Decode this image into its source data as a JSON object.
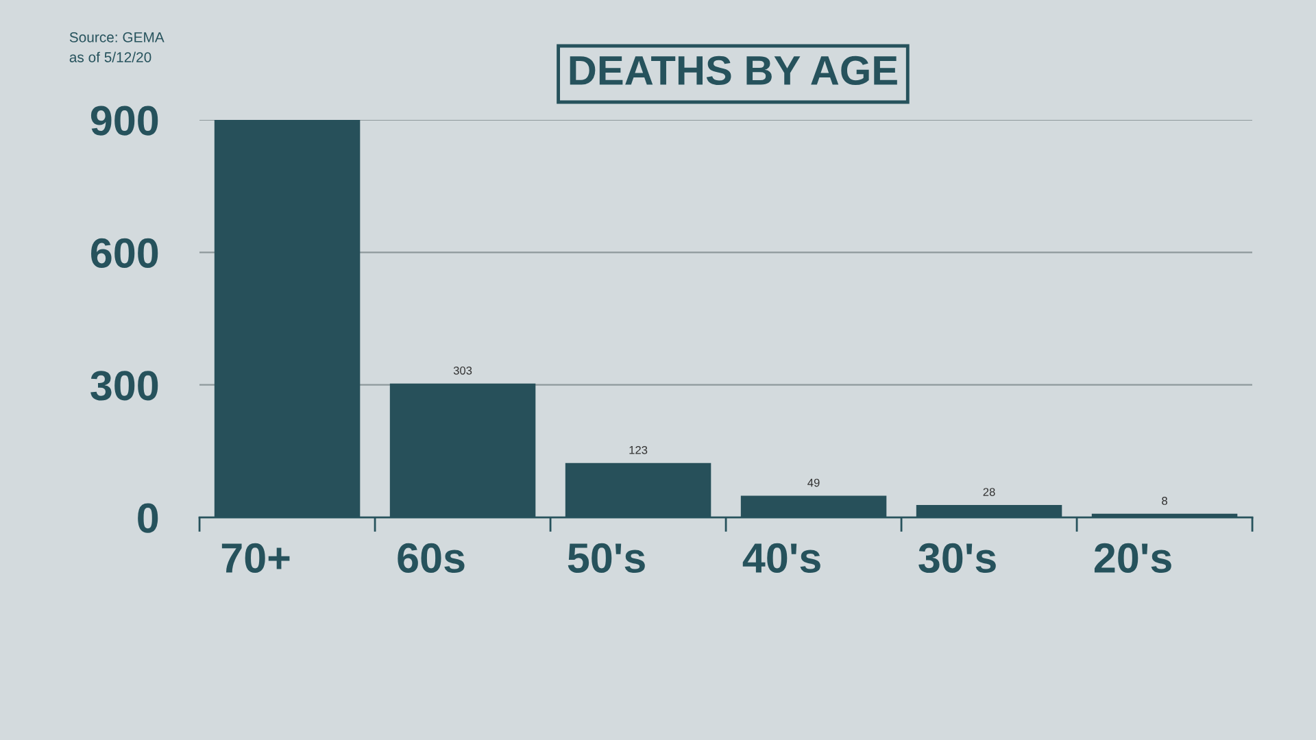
{
  "chart_data": {
    "type": "bar",
    "title": "DEATHS BY AGE",
    "categories": [
      "70+",
      "60s",
      "50's",
      "40's",
      "30's",
      "20's"
    ],
    "values": [
      900,
      303,
      123,
      49,
      28,
      8
    ],
    "color": "#27505a",
    "value_labels": [
      null,
      "303",
      "123",
      "49",
      "28",
      "8"
    ],
    "ylim": [
      0,
      900
    ],
    "yticks": [
      0,
      300,
      600,
      900
    ],
    "grid": "y",
    "annotations": [
      "Source: GEMA",
      "as of 5/12/20"
    ]
  }
}
